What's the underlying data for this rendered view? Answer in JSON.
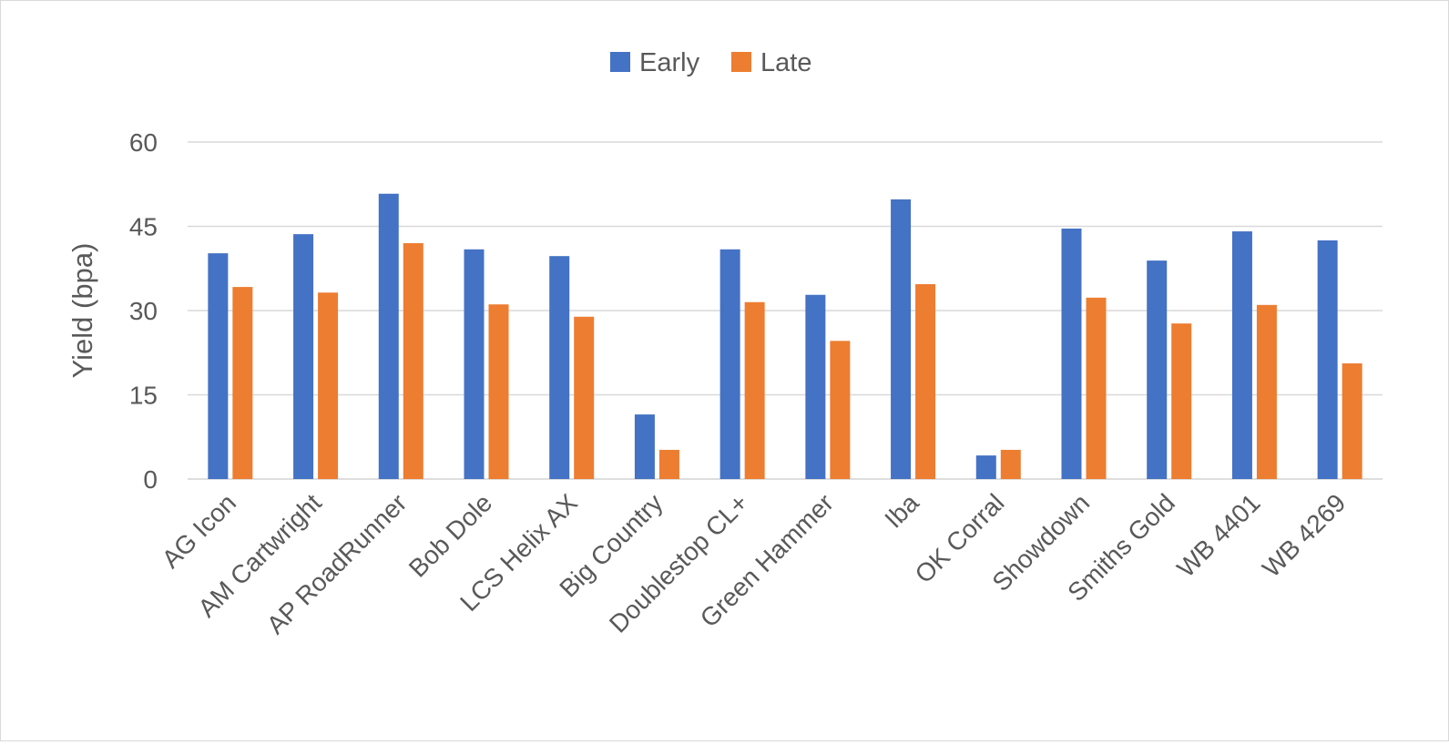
{
  "chart_data": {
    "type": "bar",
    "title": "",
    "xlabel": "",
    "ylabel": "Yield (bpa)",
    "ylim": [
      0,
      60
    ],
    "yticks": [
      0,
      15,
      30,
      45,
      60
    ],
    "grid": true,
    "legend_placement": "top",
    "categories": [
      "AG Icon",
      "AM Cartwright",
      "AP RoadRunner",
      "Bob Dole",
      "LCS Helix AX",
      "Big Country",
      "Doublestop CL+",
      "Green Hammer",
      "Iba",
      "OK Corral",
      "Showdown",
      "Smiths Gold",
      "WB 4401",
      "WB 4269"
    ],
    "series": [
      {
        "name": "Early",
        "color": "#4472C4",
        "values": [
          40.2,
          43.6,
          50.8,
          40.9,
          39.7,
          11.5,
          40.9,
          32.8,
          49.8,
          4.2,
          44.6,
          38.9,
          44.1,
          42.5
        ]
      },
      {
        "name": "Late",
        "color": "#ED7D31",
        "values": [
          34.2,
          33.2,
          42.0,
          31.1,
          28.9,
          5.2,
          31.5,
          24.6,
          34.7,
          5.2,
          32.3,
          27.7,
          31.0,
          20.6
        ]
      }
    ]
  }
}
